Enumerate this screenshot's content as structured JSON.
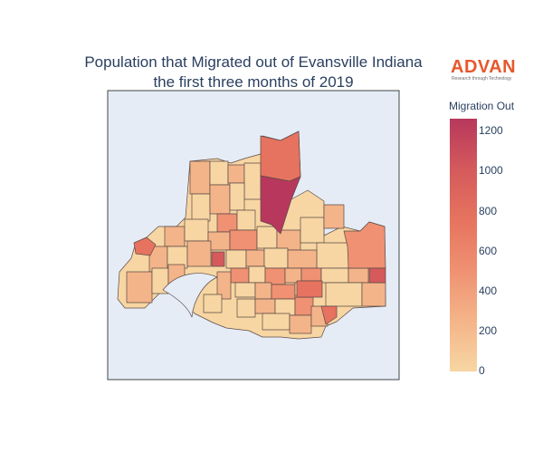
{
  "title_line1": "Population that Migrated out of Evansville Indiana",
  "title_line2": "the first three months of 2019",
  "logo": {
    "brand": "ADVAN",
    "tagline": "Research through Technology"
  },
  "colorbar": {
    "title": "Migration Out",
    "ticks": [
      "0",
      "200",
      "400",
      "600",
      "800",
      "1000",
      "1200"
    ],
    "colors": [
      "#f7d6a3",
      "#f4b489",
      "#ef9172",
      "#e6735f",
      "#d45a5c",
      "#b7385c"
    ],
    "range": [
      0,
      1270
    ]
  },
  "map": {
    "background_color": "#e5ecf6",
    "border_color": "#5b4a48",
    "regions": [
      {
        "id": "north-tall",
        "value": 620
      },
      {
        "id": "north-peak",
        "value": 1270
      },
      {
        "id": "east-large",
        "value": 520
      },
      {
        "id": "far-east-small",
        "value": 700
      },
      {
        "id": "west-spike",
        "value": 560
      },
      {
        "id": "west-small",
        "value": 650
      },
      {
        "id": "center-east",
        "value": 700
      },
      {
        "id": "southeast",
        "value": 780
      }
    ]
  }
}
